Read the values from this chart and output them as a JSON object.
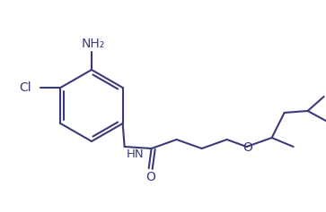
{
  "background_color": "#ffffff",
  "line_color": "#3a3a7a",
  "line_width": 1.5,
  "font_size": 9.5,
  "figsize": [
    3.63,
    2.37
  ],
  "dpi": 100,
  "NH2_label": "NH₂",
  "Cl_label": "Cl",
  "NH_label": "HN",
  "O_carbonyl": "O",
  "O_ether": "O"
}
